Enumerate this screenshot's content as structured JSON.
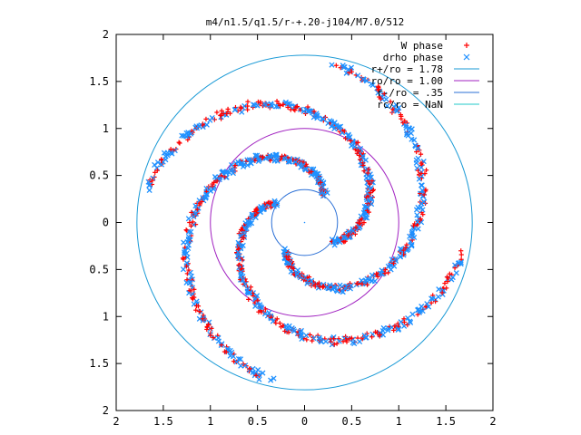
{
  "chart_data": {
    "type": "scatter",
    "title": "m4/n1.5/q1.5/r-+.20-j104/M7.0/512",
    "xlim": [
      -2,
      2
    ],
    "ylim": [
      -2,
      2
    ],
    "x_tick_values": [
      -2,
      -1.5,
      -1,
      -0.5,
      0,
      0.5,
      1,
      1.5,
      2
    ],
    "x_tick_labels": [
      "2",
      "1.5",
      "1",
      "0.5",
      "0",
      "0.5",
      "1",
      "1.5",
      "2"
    ],
    "y_tick_values": [
      2,
      1.5,
      1,
      0.5,
      0,
      -0.5,
      -1,
      -1.5,
      -2
    ],
    "y_tick_labels": [
      "2",
      "1.5",
      "1",
      "0.5",
      "0",
      "0.5",
      "1",
      "1.5",
      "2"
    ],
    "grid": false,
    "legend_position": "top-right",
    "colors": {
      "w_phase": "#ff0000",
      "drho_phase": "#1e90ff",
      "circle_outer": "#1a9ad6",
      "circle_ro": "#a020c0",
      "circle_inner": "#2a6fd6",
      "circle_nan": "#20c8c8"
    },
    "legend": [
      {
        "label": "W phase",
        "marker": "+",
        "color": "#ff0000"
      },
      {
        "label": "drho phase",
        "marker": "x",
        "color": "#1e90ff"
      },
      {
        "label": "r+/ro = 1.78",
        "marker": "line",
        "color": "#1a9ad6"
      },
      {
        "label": "ro/ro = 1.00",
        "marker": "line",
        "color": "#a020c0"
      },
      {
        "label": "r-/ro = .35",
        "marker": "line",
        "color": "#2a6fd6"
      },
      {
        "label": "rc/ro = NaN",
        "marker": "line",
        "color": "#20c8c8"
      }
    ],
    "circles": [
      {
        "name": "r+/ro",
        "radius": 1.78,
        "color": "#1a9ad6"
      },
      {
        "name": "ro/ro",
        "radius": 1.0,
        "color": "#a020c0"
      },
      {
        "name": "r-/ro",
        "radius": 0.35,
        "color": "#2a6fd6"
      }
    ],
    "spiral_arms": {
      "count": 4,
      "r_start": 0.37,
      "r_end": 1.72,
      "phase_offsets_deg": [
        90,
        180,
        270,
        0
      ],
      "twist_deg_per_unit_r": 150
    },
    "series": [
      {
        "name": "W phase",
        "marker": "+"
      },
      {
        "name": "drho phase",
        "marker": "x"
      }
    ]
  }
}
